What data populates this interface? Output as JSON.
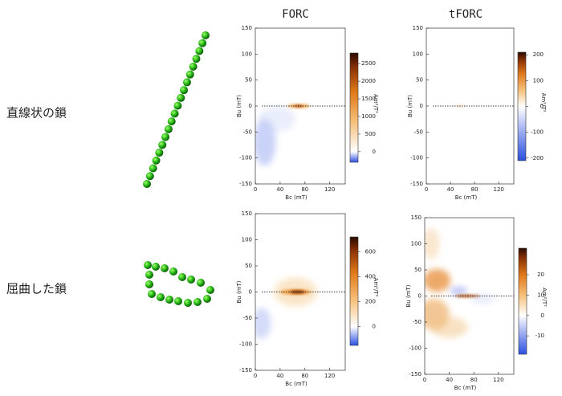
{
  "columns": [
    "FORC",
    "tFORC"
  ],
  "rows": [
    "直線状の鎖",
    "屈曲した鎖"
  ],
  "panels": [
    {
      "xlabel": "Bc (mT)",
      "ylabel": "Bu (mT)",
      "unit": "Am²/T²",
      "xlim": [
        0,
        145
      ],
      "ylim": [
        -150,
        150
      ],
      "xticks": [
        0,
        40,
        80,
        120
      ],
      "yticks": [
        150,
        100,
        50,
        0,
        -50,
        -100,
        -150
      ],
      "colorbar_lim": [
        -300,
        2800
      ],
      "colorbar_ticks": [
        2500,
        2000,
        1500,
        1000,
        500,
        0
      ]
    },
    {
      "xlabel": "Bc (mT)",
      "ylabel": "Bu (mT)",
      "unit": "Am²/T²",
      "xlim": [
        0,
        145
      ],
      "ylim": [
        -150,
        150
      ],
      "xticks": [
        0,
        40,
        80,
        120
      ],
      "yticks": [
        150,
        100,
        50,
        0,
        -50,
        -100,
        -150
      ],
      "colorbar_lim": [
        -210,
        210
      ],
      "colorbar_ticks": [
        200,
        100,
        0,
        -100,
        -200
      ]
    },
    {
      "xlabel": "Bc (mT)",
      "ylabel": "Bu (mT)",
      "unit": "Am²/T²",
      "xlim": [
        0,
        145
      ],
      "ylim": [
        -150,
        150
      ],
      "xticks": [
        0,
        40,
        80,
        120
      ],
      "yticks": [
        150,
        100,
        50,
        0,
        -50,
        -100,
        -150
      ],
      "colorbar_lim": [
        -150,
        720
      ],
      "colorbar_ticks": [
        600,
        400,
        200,
        0
      ]
    },
    {
      "xlabel": "Bc (mT)",
      "ylabel": "Bu (mT)",
      "unit": "Am²/T²",
      "xlim": [
        0,
        145
      ],
      "ylim": [
        -150,
        150
      ],
      "xticks": [
        0,
        40,
        80,
        120
      ],
      "yticks": [
        150,
        100,
        50,
        0,
        -50,
        -100,
        -150
      ],
      "colorbar_lim": [
        -19,
        33
      ],
      "colorbar_ticks": [
        20,
        10,
        0,
        -10
      ]
    }
  ]
}
